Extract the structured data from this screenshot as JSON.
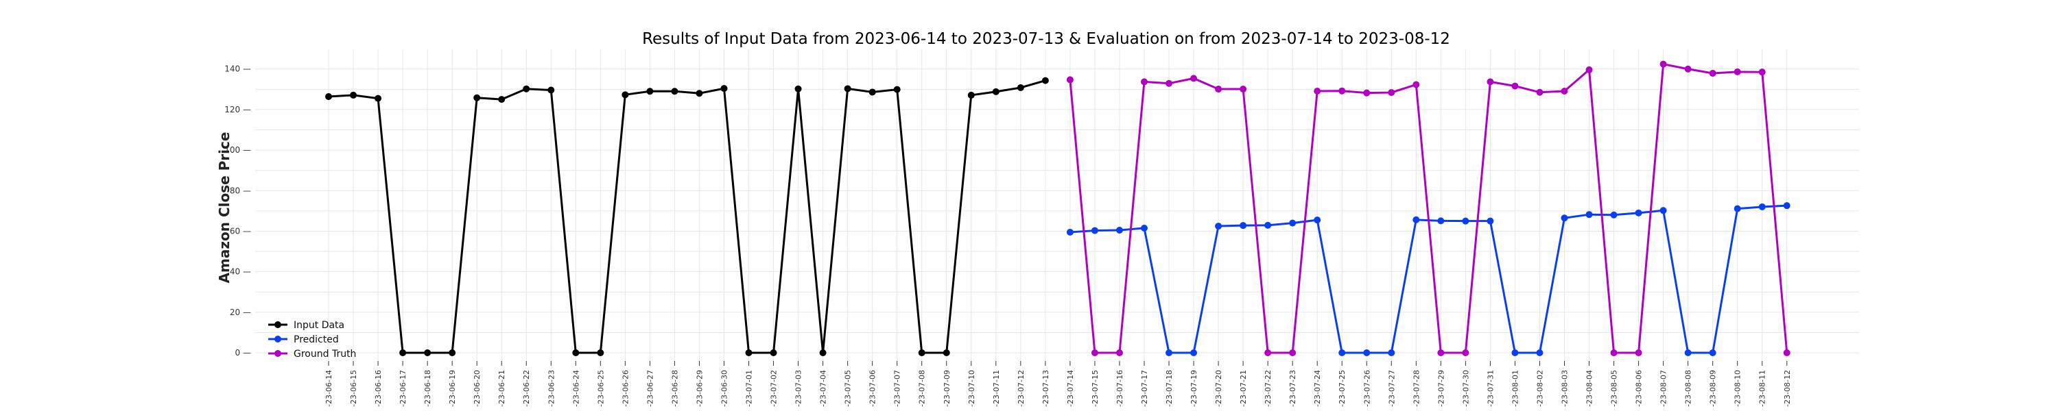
{
  "chart_data": {
    "type": "line",
    "title": "Results of Input Data from 2023-06-14 to 2023-07-13 & Evaluation on from 2023-07-14 to 2023-08-12",
    "xlabel": "",
    "ylabel": "Amazon Close Price",
    "ylim": [
      -5,
      150
    ],
    "yticks": [
      0,
      20,
      40,
      60,
      80,
      100,
      120,
      140
    ],
    "grid": true,
    "legend_position": "bottom-left",
    "categories": [
      "2023-06-14",
      "2023-06-15",
      "2023-06-16",
      "2023-06-17",
      "2023-06-18",
      "2023-06-19",
      "2023-06-20",
      "2023-06-21",
      "2023-06-22",
      "2023-06-23",
      "2023-06-24",
      "2023-06-25",
      "2023-06-26",
      "2023-06-27",
      "2023-06-28",
      "2023-06-29",
      "2023-06-30",
      "2023-07-01",
      "2023-07-02",
      "2023-07-03",
      "2023-07-04",
      "2023-07-05",
      "2023-07-06",
      "2023-07-07",
      "2023-07-08",
      "2023-07-09",
      "2023-07-10",
      "2023-07-11",
      "2023-07-12",
      "2023-07-13",
      "2023-07-14",
      "2023-07-15",
      "2023-07-16",
      "2023-07-17",
      "2023-07-18",
      "2023-07-19",
      "2023-07-20",
      "2023-07-21",
      "2023-07-22",
      "2023-07-23",
      "2023-07-24",
      "2023-07-25",
      "2023-07-26",
      "2023-07-27",
      "2023-07-28",
      "2023-07-29",
      "2023-07-30",
      "2023-07-31",
      "2023-08-01",
      "2023-08-02",
      "2023-08-03",
      "2023-08-04",
      "2023-08-05",
      "2023-08-06",
      "2023-08-07",
      "2023-08-08",
      "2023-08-09",
      "2023-08-10",
      "2023-08-11",
      "2023-08-12"
    ],
    "tick_labels": [
      "-23-06-14",
      "-23-06-15",
      "-23-06-16",
      "-23-06-17",
      "-23-06-18",
      "-23-06-19",
      "-23-06-20",
      "-23-06-21",
      "-23-06-22",
      "-23-06-23",
      "-23-06-24",
      "-23-06-25",
      "-23-06-26",
      "-23-06-27",
      "-23-06-28",
      "-23-06-29",
      "-23-06-30",
      "-23-07-01",
      "-23-07-02",
      "-23-07-03",
      "-23-07-04",
      "-23-07-05",
      "-23-07-06",
      "-23-07-07",
      "-23-07-08",
      "-23-07-09",
      "-23-07-10",
      "-23-07-11",
      "-23-07-12",
      "-23-07-13",
      "-23-07-14",
      "-23-07-15",
      "-23-07-16",
      "-23-07-17",
      "-23-07-18",
      "-23-07-19",
      "-23-07-20",
      "-23-07-21",
      "-23-07-22",
      "-23-07-23",
      "-23-07-24",
      "-23-07-25",
      "-23-07-26",
      "-23-07-27",
      "-23-07-28",
      "-23-07-29",
      "-23-07-30",
      "-23-07-31",
      "-23-08-01",
      "-23-08-02",
      "-23-08-03",
      "-23-08-04",
      "-23-08-05",
      "-23-08-06",
      "-23-08-07",
      "-23-08-08",
      "-23-08-09",
      "-23-08-10",
      "-23-08-11",
      "-23-08-12"
    ],
    "series": [
      {
        "name": "Input Data",
        "color": "#000000",
        "x": [
          "2023-06-14",
          "2023-06-15",
          "2023-06-16",
          "2023-06-17",
          "2023-06-18",
          "2023-06-19",
          "2023-06-20",
          "2023-06-21",
          "2023-06-22",
          "2023-06-23",
          "2023-06-24",
          "2023-06-25",
          "2023-06-26",
          "2023-06-27",
          "2023-06-28",
          "2023-06-29",
          "2023-06-30",
          "2023-07-01",
          "2023-07-02",
          "2023-07-03",
          "2023-07-04",
          "2023-07-05",
          "2023-07-06",
          "2023-07-07",
          "2023-07-08",
          "2023-07-09",
          "2023-07-10",
          "2023-07-11",
          "2023-07-12",
          "2023-07-13"
        ],
        "values": [
          126.4,
          127.1,
          125.5,
          0,
          0,
          0,
          125.8,
          125.0,
          130.2,
          129.6,
          0,
          0,
          127.3,
          129.0,
          129.0,
          128.0,
          130.4,
          0,
          0,
          130.2,
          0,
          130.3,
          128.6,
          129.9,
          0,
          0,
          127.1,
          128.8,
          130.8,
          134.3
        ]
      },
      {
        "name": "Predicted",
        "color": "#0a3ff0",
        "x": [
          "2023-07-14",
          "2023-07-15",
          "2023-07-16",
          "2023-07-17",
          "2023-07-18",
          "2023-07-19",
          "2023-07-20",
          "2023-07-21",
          "2023-07-22",
          "2023-07-23",
          "2023-07-24",
          "2023-07-25",
          "2023-07-26",
          "2023-07-27",
          "2023-07-28",
          "2023-07-29",
          "2023-07-30",
          "2023-07-31",
          "2023-08-01",
          "2023-08-02",
          "2023-08-03",
          "2023-08-04",
          "2023-08-05",
          "2023-08-06",
          "2023-08-07",
          "2023-08-08",
          "2023-08-09",
          "2023-08-10",
          "2023-08-11",
          "2023-08-12"
        ],
        "values": [
          59.5,
          60.3,
          60.5,
          61.5,
          0,
          0,
          62.5,
          62.8,
          62.9,
          64.0,
          65.5,
          0,
          0,
          0,
          65.6,
          65.1,
          65.0,
          65.0,
          0,
          0,
          66.5,
          68.2,
          68.0,
          69.0,
          70.2,
          0,
          0,
          71.1,
          72.0,
          72.6
        ]
      },
      {
        "name": "Ground Truth",
        "color": "#b000c0",
        "x": [
          "2023-07-14",
          "2023-07-15",
          "2023-07-16",
          "2023-07-17",
          "2023-07-18",
          "2023-07-19",
          "2023-07-20",
          "2023-07-21",
          "2023-07-22",
          "2023-07-23",
          "2023-07-24",
          "2023-07-25",
          "2023-07-26",
          "2023-07-27",
          "2023-07-28",
          "2023-07-29",
          "2023-07-30",
          "2023-07-31",
          "2023-08-01",
          "2023-08-02",
          "2023-08-03",
          "2023-08-04",
          "2023-08-05",
          "2023-08-06",
          "2023-08-07",
          "2023-08-08",
          "2023-08-09",
          "2023-08-10",
          "2023-08-11",
          "2023-08-12"
        ],
        "values": [
          134.7,
          0,
          0,
          133.7,
          132.9,
          135.4,
          130.1,
          130.1,
          0,
          0,
          129.1,
          129.2,
          128.2,
          128.4,
          132.3,
          0,
          0,
          133.7,
          131.6,
          128.5,
          129.1,
          139.6,
          0,
          0,
          142.4,
          140.0,
          137.9,
          138.6,
          138.5,
          0
        ]
      }
    ]
  }
}
